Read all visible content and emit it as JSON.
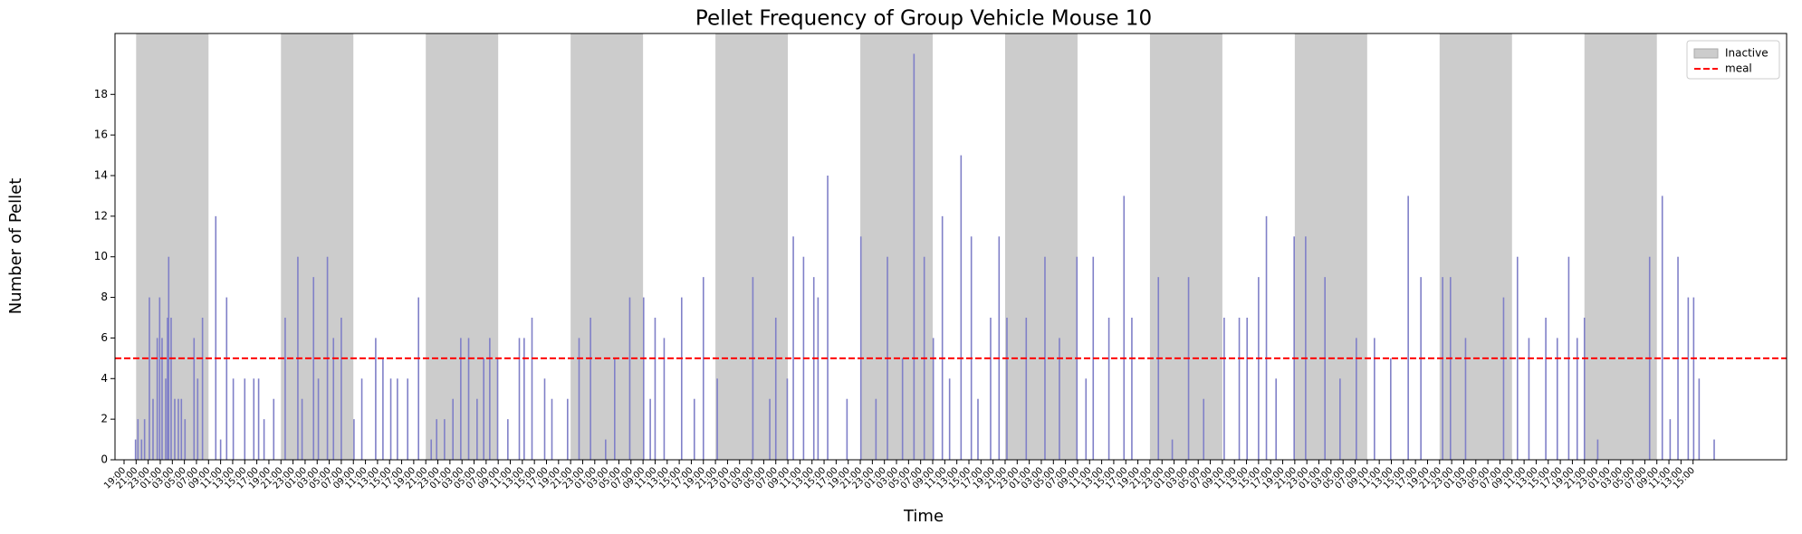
{
  "chart_data": {
    "type": "bar",
    "title": "Pellet Frequency of Group Vehicle Mouse 10",
    "xlabel": "Time",
    "ylabel": "Number of Pellet",
    "color": "#8080c8",
    "x": [
      1.9,
      2.3,
      2.9,
      3.4,
      4.2,
      4.8,
      5.5,
      5.9,
      6.3,
      6.9,
      7.2,
      7.4,
      7.8,
      8.4,
      9,
      9.5,
      10.1,
      11.6,
      12.2,
      13,
      15.2,
      16,
      17,
      18.1,
      20,
      21.5,
      22.3,
      23.2,
      24.8,
      26.7,
      28.8,
      29.5,
      31.4,
      32.2,
      33.7,
      34.7,
      36,
      38.1,
      39.4,
      41.7,
      42.9,
      44.2,
      45.3,
      47,
      48.8,
      50.9,
      51.8,
      53.1,
      54.5,
      55.8,
      57.1,
      58.5,
      59.6,
      60.6,
      61.9,
      63.6,
      65.5,
      66.3,
      67.6,
      69.7,
      70.9,
      73.5,
      75.4,
      77.3,
      79.8,
      81.3,
      83.8,
      86.1,
      87.2,
      88,
      89.5,
      92.4,
      94.5,
      96,
      98.3,
      104.2,
      107,
      108,
      109.9,
      110.9,
      112.6,
      114.3,
      115,
      116.6,
      119.8,
      122.1,
      124.6,
      126.5,
      129,
      130.9,
      132.6,
      134.1,
      135.6,
      136.8,
      138.7,
      140.4,
      141.5,
      143.6,
      145,
      146.3,
      149.5,
      152.6,
      155,
      157.9,
      159.4,
      160.6,
      163.2,
      165.7,
      167,
      171.4,
      173.7,
      176.4,
      178.9,
      182.3,
      184.8,
      186.1,
      188,
      189.3,
      190.9,
      193.9,
      195.8,
      199,
      201.5,
      204.2,
      207.2,
      209.9,
      212.8,
      214.9,
      218.5,
      219.8,
      222.3,
      228.6,
      230.9,
      232.8,
      235.6,
      237.5,
      239.4,
      240.8,
      242,
      244.2,
      252.8,
      254.9,
      256.2,
      257.5,
      259.2,
      260.1,
      261,
      263.5
    ],
    "values": [
      1,
      2,
      1,
      2,
      8,
      3,
      6,
      8,
      6,
      4,
      7,
      10,
      7,
      3,
      3,
      3,
      2,
      6,
      4,
      7,
      12,
      1,
      8,
      4,
      4,
      4,
      4,
      2,
      3,
      7,
      10,
      3,
      9,
      4,
      10,
      6,
      7,
      2,
      4,
      6,
      5,
      4,
      4,
      4,
      8,
      1,
      2,
      2,
      3,
      6,
      6,
      3,
      5,
      6,
      5,
      2,
      6,
      6,
      7,
      4,
      3,
      3,
      6,
      7,
      1,
      5,
      8,
      8,
      3,
      7,
      6,
      8,
      3,
      9,
      4,
      9,
      3,
      7,
      4,
      11,
      10,
      9,
      8,
      14,
      3,
      11,
      3,
      10,
      5,
      20,
      10,
      6,
      12,
      4,
      15,
      11,
      3,
      7,
      11,
      7,
      7,
      10,
      6,
      10,
      4,
      10,
      7,
      13,
      7,
      9,
      1,
      9,
      3,
      7,
      7,
      7,
      9,
      12,
      4,
      11,
      11,
      9,
      4,
      6,
      6,
      5,
      13,
      9,
      9,
      9,
      6,
      8,
      10,
      6,
      7,
      6,
      10,
      6,
      7,
      1,
      10,
      13,
      2,
      10,
      8,
      8,
      4,
      1
    ],
    "xlim": [
      -1.5,
      275.5
    ],
    "ylim": [
      0,
      21
    ],
    "yticks": [
      0,
      2,
      4,
      6,
      8,
      10,
      12,
      14,
      16,
      18
    ],
    "xticks": [
      {
        "value": 0,
        "label": "19:00"
      },
      {
        "value": 2,
        "label": "21:00"
      },
      {
        "value": 4,
        "label": "23:00"
      },
      {
        "value": 6,
        "label": "01:00"
      },
      {
        "value": 8,
        "label": "03:00"
      },
      {
        "value": 10,
        "label": "05:00"
      },
      {
        "value": 12,
        "label": "07:00"
      },
      {
        "value": 14,
        "label": "09:00"
      },
      {
        "value": 16,
        "label": "11:00"
      },
      {
        "value": 18,
        "label": "13:00"
      },
      {
        "value": 20,
        "label": "15:00"
      },
      {
        "value": 22,
        "label": "17:00"
      },
      {
        "value": 24,
        "label": "19:00"
      },
      {
        "value": 26,
        "label": "21:00"
      },
      {
        "value": 28,
        "label": "23:00"
      },
      {
        "value": 30,
        "label": "01:00"
      },
      {
        "value": 32,
        "label": "03:00"
      },
      {
        "value": 34,
        "label": "05:00"
      },
      {
        "value": 36,
        "label": "07:00"
      },
      {
        "value": 38,
        "label": "09:00"
      },
      {
        "value": 40,
        "label": "11:00"
      },
      {
        "value": 42,
        "label": "13:00"
      },
      {
        "value": 44,
        "label": "15:00"
      },
      {
        "value": 46,
        "label": "17:00"
      },
      {
        "value": 48,
        "label": "19:00"
      },
      {
        "value": 50,
        "label": "21:00"
      },
      {
        "value": 52,
        "label": "23:00"
      },
      {
        "value": 54,
        "label": "01:00"
      },
      {
        "value": 56,
        "label": "03:00"
      },
      {
        "value": 58,
        "label": "05:00"
      },
      {
        "value": 60,
        "label": "07:00"
      },
      {
        "value": 62,
        "label": "09:00"
      },
      {
        "value": 64,
        "label": "11:00"
      },
      {
        "value": 66,
        "label": "13:00"
      },
      {
        "value": 68,
        "label": "15:00"
      },
      {
        "value": 70,
        "label": "17:00"
      },
      {
        "value": 72,
        "label": "19:00"
      },
      {
        "value": 74,
        "label": "21:00"
      },
      {
        "value": 76,
        "label": "23:00"
      },
      {
        "value": 78,
        "label": "01:00"
      },
      {
        "value": 80,
        "label": "03:00"
      },
      {
        "value": 82,
        "label": "05:00"
      },
      {
        "value": 84,
        "label": "07:00"
      },
      {
        "value": 86,
        "label": "09:00"
      },
      {
        "value": 88,
        "label": "11:00"
      },
      {
        "value": 90,
        "label": "13:00"
      },
      {
        "value": 92,
        "label": "15:00"
      },
      {
        "value": 94,
        "label": "17:00"
      },
      {
        "value": 96,
        "label": "19:00"
      },
      {
        "value": 98,
        "label": "21:00"
      },
      {
        "value": 100,
        "label": "23:00"
      },
      {
        "value": 102,
        "label": "01:00"
      },
      {
        "value": 104,
        "label": "03:00"
      },
      {
        "value": 106,
        "label": "05:00"
      },
      {
        "value": 108,
        "label": "07:00"
      },
      {
        "value": 110,
        "label": "09:00"
      },
      {
        "value": 112,
        "label": "11:00"
      },
      {
        "value": 114,
        "label": "13:00"
      },
      {
        "value": 116,
        "label": "15:00"
      },
      {
        "value": 118,
        "label": "17:00"
      },
      {
        "value": 120,
        "label": "19:00"
      },
      {
        "value": 122,
        "label": "21:00"
      },
      {
        "value": 124,
        "label": "23:00"
      },
      {
        "value": 126,
        "label": "01:00"
      },
      {
        "value": 128,
        "label": "03:00"
      },
      {
        "value": 130,
        "label": "05:00"
      },
      {
        "value": 132,
        "label": "07:00"
      },
      {
        "value": 134,
        "label": "09:00"
      },
      {
        "value": 136,
        "label": "11:00"
      },
      {
        "value": 138,
        "label": "13:00"
      },
      {
        "value": 140,
        "label": "15:00"
      },
      {
        "value": 142,
        "label": "17:00"
      },
      {
        "value": 144,
        "label": "19:00"
      },
      {
        "value": 146,
        "label": "21:00"
      },
      {
        "value": 148,
        "label": "23:00"
      },
      {
        "value": 150,
        "label": "01:00"
      },
      {
        "value": 152,
        "label": "03:00"
      },
      {
        "value": 154,
        "label": "05:00"
      },
      {
        "value": 156,
        "label": "07:00"
      },
      {
        "value": 158,
        "label": "09:00"
      },
      {
        "value": 160,
        "label": "11:00"
      },
      {
        "value": 162,
        "label": "13:00"
      },
      {
        "value": 164,
        "label": "15:00"
      },
      {
        "value": 166,
        "label": "17:00"
      },
      {
        "value": 168,
        "label": "19:00"
      },
      {
        "value": 170,
        "label": "21:00"
      },
      {
        "value": 172,
        "label": "23:00"
      },
      {
        "value": 174,
        "label": "01:00"
      },
      {
        "value": 176,
        "label": "03:00"
      },
      {
        "value": 178,
        "label": "05:00"
      },
      {
        "value": 180,
        "label": "07:00"
      },
      {
        "value": 182,
        "label": "09:00"
      },
      {
        "value": 184,
        "label": "11:00"
      },
      {
        "value": 186,
        "label": "13:00"
      },
      {
        "value": 188,
        "label": "15:00"
      },
      {
        "value": 190,
        "label": "17:00"
      },
      {
        "value": 192,
        "label": "19:00"
      },
      {
        "value": 194,
        "label": "21:00"
      },
      {
        "value": 196,
        "label": "23:00"
      },
      {
        "value": 198,
        "label": "01:00"
      },
      {
        "value": 200,
        "label": "03:00"
      },
      {
        "value": 202,
        "label": "05:00"
      },
      {
        "value": 204,
        "label": "07:00"
      },
      {
        "value": 206,
        "label": "09:00"
      },
      {
        "value": 208,
        "label": "11:00"
      },
      {
        "value": 210,
        "label": "13:00"
      },
      {
        "value": 212,
        "label": "15:00"
      },
      {
        "value": 214,
        "label": "17:00"
      },
      {
        "value": 216,
        "label": "19:00"
      },
      {
        "value": 218,
        "label": "21:00"
      },
      {
        "value": 220,
        "label": "23:00"
      },
      {
        "value": 222,
        "label": "01:00"
      },
      {
        "value": 224,
        "label": "03:00"
      },
      {
        "value": 226,
        "label": "05:00"
      },
      {
        "value": 228,
        "label": "07:00"
      },
      {
        "value": 230,
        "label": "09:00"
      },
      {
        "value": 232,
        "label": "11:00"
      },
      {
        "value": 234,
        "label": "13:00"
      },
      {
        "value": 236,
        "label": "15:00"
      },
      {
        "value": 238,
        "label": "17:00"
      },
      {
        "value": 240,
        "label": "19:00"
      },
      {
        "value": 242,
        "label": "21:00"
      },
      {
        "value": 244,
        "label": "23:00"
      },
      {
        "value": 246,
        "label": "01:00"
      },
      {
        "value": 248,
        "label": "03:00"
      },
      {
        "value": 250,
        "label": "05:00"
      },
      {
        "value": 252,
        "label": "07:00"
      },
      {
        "value": 254,
        "label": "09:00"
      },
      {
        "value": 256,
        "label": "11:00"
      },
      {
        "value": 258,
        "label": "13:00"
      },
      {
        "value": 260,
        "label": "15:00"
      }
    ],
    "inactive": {
      "name": "Inactive",
      "color": "#cccccc",
      "intervals": [
        [
          2,
          14
        ],
        [
          26,
          38
        ],
        [
          50,
          62
        ],
        [
          74,
          86
        ],
        [
          98,
          110
        ],
        [
          122,
          134
        ],
        [
          146,
          158
        ],
        [
          170,
          182
        ],
        [
          194,
          206
        ],
        [
          218,
          230
        ],
        [
          242,
          254
        ]
      ]
    },
    "meal": {
      "name": "meal",
      "value": 5,
      "color": "#ff0000"
    },
    "legend": "upper right"
  }
}
